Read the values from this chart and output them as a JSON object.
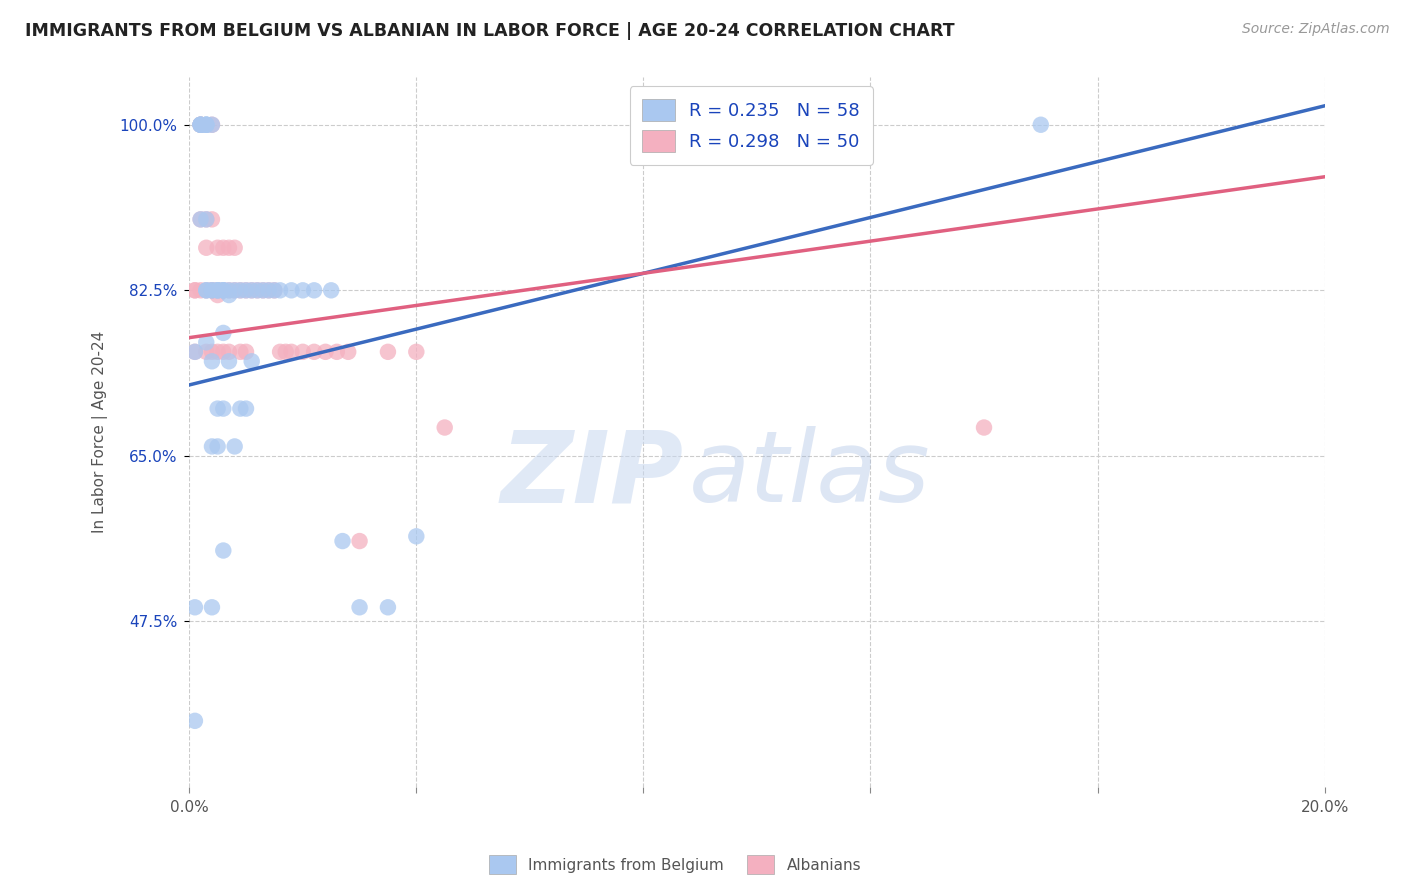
{
  "title": "IMMIGRANTS FROM BELGIUM VS ALBANIAN IN LABOR FORCE | AGE 20-24 CORRELATION CHART",
  "source": "Source: ZipAtlas.com",
  "ylabel": "In Labor Force | Age 20-24",
  "xlim": [
    0.0,
    0.2
  ],
  "ylim": [
    0.3,
    1.05
  ],
  "xticks": [
    0.0,
    0.04,
    0.08,
    0.12,
    0.16,
    0.2
  ],
  "xticklabels": [
    "0.0%",
    "",
    "",
    "",
    "",
    "20.0%"
  ],
  "yticks": [
    0.475,
    0.65,
    0.825,
    1.0
  ],
  "yticklabels": [
    "47.5%",
    "65.0%",
    "82.5%",
    "100.0%"
  ],
  "belgium_R": 0.235,
  "belgium_N": 58,
  "albanian_R": 0.298,
  "albanian_N": 50,
  "belgium_color": "#aac8f0",
  "albanian_color": "#f4b0c0",
  "belgium_line_color": "#3a6abf",
  "albanian_line_color": "#e06080",
  "legend_color": "#1a44bb",
  "background_color": "#ffffff",
  "belgium_x": [
    0.001,
    0.001,
    0.001,
    0.002,
    0.002,
    0.002,
    0.002,
    0.002,
    0.003,
    0.003,
    0.003,
    0.003,
    0.003,
    0.003,
    0.003,
    0.003,
    0.004,
    0.004,
    0.004,
    0.004,
    0.004,
    0.004,
    0.005,
    0.005,
    0.005,
    0.005,
    0.005,
    0.006,
    0.006,
    0.006,
    0.006,
    0.006,
    0.006,
    0.007,
    0.007,
    0.007,
    0.008,
    0.008,
    0.009,
    0.009,
    0.01,
    0.01,
    0.011,
    0.011,
    0.012,
    0.013,
    0.014,
    0.015,
    0.016,
    0.018,
    0.02,
    0.022,
    0.025,
    0.027,
    0.03,
    0.035,
    0.04,
    0.15
  ],
  "belgium_y": [
    0.76,
    0.49,
    0.37,
    1.0,
    1.0,
    1.0,
    1.0,
    0.9,
    1.0,
    1.0,
    1.0,
    1.0,
    0.9,
    0.825,
    0.825,
    0.77,
    1.0,
    0.825,
    0.825,
    0.75,
    0.66,
    0.49,
    0.825,
    0.825,
    0.825,
    0.7,
    0.66,
    0.825,
    0.825,
    0.825,
    0.78,
    0.7,
    0.55,
    0.825,
    0.82,
    0.75,
    0.825,
    0.66,
    0.825,
    0.7,
    0.825,
    0.7,
    0.825,
    0.75,
    0.825,
    0.825,
    0.825,
    0.825,
    0.825,
    0.825,
    0.825,
    0.825,
    0.825,
    0.56,
    0.49,
    0.49,
    0.565,
    1.0
  ],
  "albanian_x": [
    0.001,
    0.001,
    0.001,
    0.002,
    0.002,
    0.002,
    0.002,
    0.003,
    0.003,
    0.003,
    0.003,
    0.004,
    0.004,
    0.004,
    0.004,
    0.004,
    0.005,
    0.005,
    0.005,
    0.005,
    0.006,
    0.006,
    0.006,
    0.007,
    0.007,
    0.007,
    0.008,
    0.008,
    0.009,
    0.009,
    0.01,
    0.01,
    0.011,
    0.012,
    0.013,
    0.014,
    0.015,
    0.016,
    0.017,
    0.018,
    0.02,
    0.022,
    0.024,
    0.026,
    0.028,
    0.03,
    0.035,
    0.04,
    0.045,
    0.14
  ],
  "albanian_y": [
    0.825,
    0.825,
    0.76,
    1.0,
    1.0,
    0.9,
    0.825,
    0.9,
    0.87,
    0.825,
    0.76,
    1.0,
    0.9,
    0.825,
    0.825,
    0.76,
    0.87,
    0.825,
    0.82,
    0.76,
    0.87,
    0.825,
    0.76,
    0.87,
    0.825,
    0.76,
    0.87,
    0.825,
    0.825,
    0.76,
    0.825,
    0.76,
    0.825,
    0.825,
    0.825,
    0.825,
    0.825,
    0.76,
    0.76,
    0.76,
    0.76,
    0.76,
    0.76,
    0.76,
    0.76,
    0.56,
    0.76,
    0.76,
    0.68,
    0.68
  ],
  "watermark_zip": "ZIP",
  "watermark_atlas": "atlas"
}
